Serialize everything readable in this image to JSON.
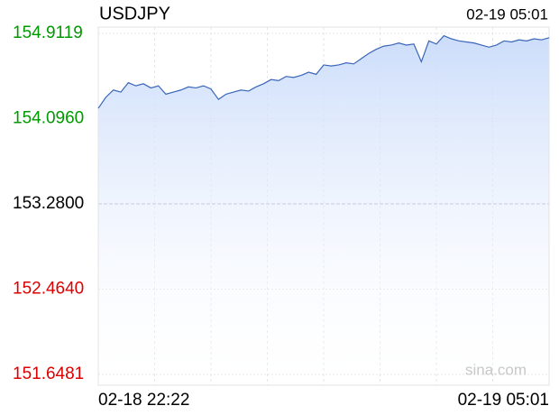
{
  "chart_data": {
    "type": "line",
    "title": "USDJPY",
    "timestamp": "02-19 05:01",
    "watermark": "sina.com",
    "categories": [
      "02-18 22:22",
      null,
      null,
      null,
      null,
      null,
      null,
      null,
      null,
      null,
      null,
      null,
      null,
      null,
      null,
      null,
      null,
      null,
      null,
      null,
      null,
      null,
      null,
      null,
      null,
      null,
      null,
      null,
      null,
      null,
      null,
      null,
      null,
      null,
      null,
      null,
      null,
      null,
      null,
      null,
      null,
      null,
      null,
      null,
      null,
      null,
      null,
      null,
      null,
      null,
      null,
      null,
      null,
      null,
      null,
      null,
      null,
      null,
      null,
      null,
      "02-19 05:01"
    ],
    "values": [
      154.195,
      154.3,
      154.37,
      154.35,
      154.44,
      154.41,
      154.43,
      154.39,
      154.41,
      154.33,
      154.35,
      154.37,
      154.4,
      154.39,
      154.41,
      154.38,
      154.28,
      154.33,
      154.35,
      154.37,
      154.36,
      154.4,
      154.43,
      154.47,
      154.46,
      154.5,
      154.49,
      154.51,
      154.54,
      154.52,
      154.61,
      154.6,
      154.61,
      154.63,
      154.62,
      154.67,
      154.72,
      154.76,
      154.79,
      154.8,
      154.82,
      154.8,
      154.81,
      154.64,
      154.84,
      154.81,
      154.89,
      154.86,
      154.84,
      154.83,
      154.82,
      154.8,
      154.78,
      154.8,
      154.84,
      154.83,
      154.85,
      154.84,
      154.86,
      154.85,
      154.87
    ],
    "color": "#3a66b8",
    "fill_color": "#cfe0fb",
    "ylim": [
      151.6481,
      154.9119
    ],
    "yticks": [
      154.9119,
      {
        "value": 154.096,
        "label": "154.0960"
      },
      {
        "value": 153.28,
        "label": "153.2800"
      },
      {
        "value": 152.464,
        "label": "152.4640"
      },
      151.6481
    ],
    "up_color": "#009900",
    "down_color": "#dd0000",
    "flat_color": "#000000",
    "grid": true
  }
}
